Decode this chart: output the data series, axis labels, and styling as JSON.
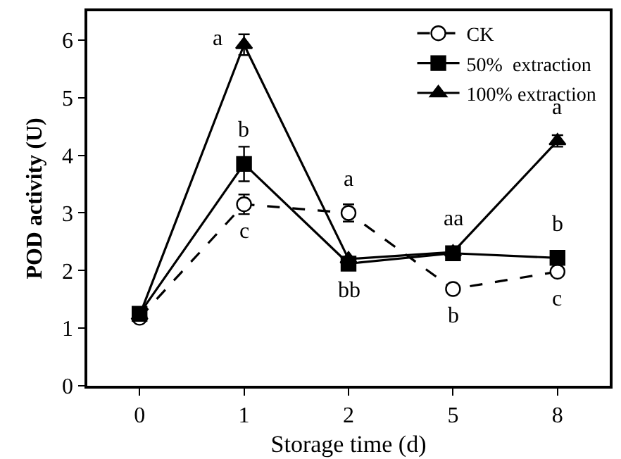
{
  "chart_data": {
    "type": "line",
    "xlabel": "Storage time (d)",
    "ylabel": "POD activity (U)",
    "categories": [
      "0",
      "1",
      "2",
      "5",
      "8"
    ],
    "ylim": [
      0,
      6.5
    ],
    "yticks": [
      0,
      1,
      2,
      3,
      4,
      5,
      6
    ],
    "grid": false,
    "legend": "top right",
    "series": [
      {
        "name": "CK",
        "color": "#000000",
        "marker": "circle",
        "line_style": "dashed",
        "values": [
          1.18,
          3.15,
          3.0,
          1.68,
          1.98
        ],
        "errors": [
          null,
          0.17,
          0.15,
          0.05,
          0.05
        ]
      },
      {
        "name": "50%  extraction",
        "color": "#000000",
        "marker": "square",
        "line_style": "solid",
        "values": [
          1.25,
          3.85,
          2.12,
          2.3,
          2.22
        ],
        "errors": [
          null,
          0.3,
          null,
          null,
          null
        ]
      },
      {
        "name": "100% extraction",
        "color": "#000000",
        "marker": "triangle",
        "line_style": "solid",
        "values": [
          1.22,
          5.92,
          2.2,
          2.32,
          4.25
        ],
        "errors": [
          null,
          0.18,
          null,
          null,
          0.1
        ]
      }
    ],
    "annotations": [
      {
        "text": "a",
        "x": "1",
        "y": 5.92
      },
      {
        "text": "b",
        "x": "1",
        "y": 3.85
      },
      {
        "text": "c",
        "x": "1",
        "y": 3.15
      },
      {
        "text": "a",
        "x": "2",
        "y": 3.0
      },
      {
        "text": "bb",
        "x": "2",
        "y": 2.12
      },
      {
        "text": "aa",
        "x": "5",
        "y": 2.32
      },
      {
        "text": "b",
        "x": "5",
        "y": 1.68
      },
      {
        "text": "a",
        "x": "8",
        "y": 4.25
      },
      {
        "text": "b",
        "x": "8",
        "y": 2.22
      },
      {
        "text": "c",
        "x": "8",
        "y": 1.98
      }
    ]
  }
}
